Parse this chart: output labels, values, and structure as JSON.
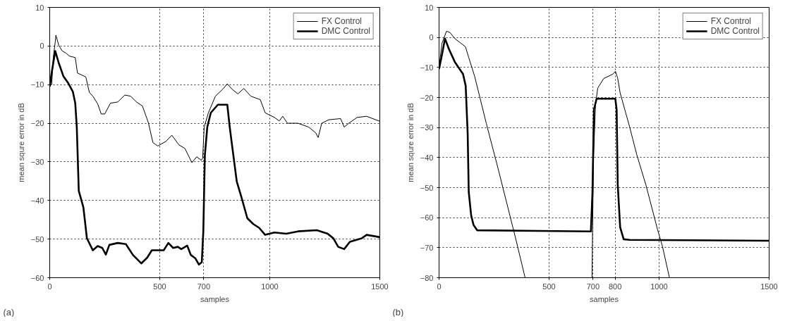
{
  "chart_data": [
    {
      "type": "line",
      "xlabel": "samples",
      "ylabel": "mean squre error in dB",
      "annotations": [
        "(a)"
      ],
      "legend": "top right",
      "grid": true,
      "xlim": [
        0,
        1500
      ],
      "ylim": [
        -60,
        10
      ],
      "xticks": [
        0,
        500,
        700,
        1000,
        1500
      ],
      "yticks": [
        -60,
        -50,
        -40,
        -30,
        -20,
        -10,
        0,
        10
      ],
      "series": [
        {
          "name": "FX Control",
          "color": "#000000",
          "x": [
            0,
            9,
            16,
            25,
            28,
            41,
            57,
            73,
            89,
            116,
            126,
            164,
            180,
            196,
            218,
            234,
            250,
            276,
            309,
            341,
            368,
            394,
            421,
            448,
            469,
            491,
            528,
            555,
            587,
            614,
            646,
            668,
            689,
            695,
            702,
            721,
            753,
            786,
            807,
            829,
            855,
            882,
            914,
            957,
            979,
            1021,
            1043,
            1059,
            1080,
            1128,
            1177,
            1209,
            1220,
            1236,
            1268,
            1322,
            1338,
            1359,
            1397,
            1440,
            1500
          ],
          "values": [
            -10.2,
            -10,
            -3,
            1,
            2.8,
            0.2,
            -1.3,
            -1.8,
            -2.6,
            -3,
            -7,
            -8,
            -12,
            -13,
            -15,
            -17.6,
            -17.6,
            -14.8,
            -14.5,
            -12.7,
            -13,
            -14.5,
            -15.5,
            -19.8,
            -25,
            -25.9,
            -24.7,
            -23.1,
            -25.6,
            -26.5,
            -30.2,
            -28.7,
            -29.6,
            -29,
            -21,
            -17.3,
            -13,
            -11.2,
            -9.8,
            -11.2,
            -12.4,
            -11,
            -13,
            -13.9,
            -17.3,
            -18.5,
            -19.4,
            -18.2,
            -20,
            -20,
            -21,
            -22.5,
            -23.7,
            -20,
            -19.1,
            -18.8,
            -21,
            -20,
            -18.5,
            -18.2,
            -19.5
          ]
        },
        {
          "name": "DMC Control",
          "color": "#000000",
          "x": [
            0,
            9,
            25,
            41,
            62,
            84,
            105,
            116,
            123,
            132,
            153,
            169,
            196,
            218,
            239,
            255,
            271,
            309,
            346,
            378,
            416,
            443,
            464,
            518,
            539,
            561,
            582,
            598,
            625,
            641,
            662,
            678,
            691,
            698,
            705,
            716,
            732,
            764,
            807,
            818,
            829,
            850,
            871,
            898,
            925,
            952,
            979,
            1021,
            1075,
            1128,
            1214,
            1263,
            1289,
            1311,
            1338,
            1364,
            1418,
            1440,
            1500
          ],
          "values": [
            -10.5,
            -6.9,
            -1.3,
            -4.4,
            -7.8,
            -9.6,
            -11.8,
            -14.8,
            -21,
            -37.5,
            -41.8,
            -49.8,
            -52.9,
            -51.8,
            -52.3,
            -54,
            -51.5,
            -51,
            -51.3,
            -54.1,
            -56.3,
            -54.8,
            -52.9,
            -52.9,
            -51,
            -52.3,
            -52,
            -52.6,
            -51.7,
            -54.1,
            -55,
            -56.6,
            -56,
            -48,
            -28.3,
            -21,
            -17.3,
            -15.2,
            -15.2,
            -21,
            -25.9,
            -35.1,
            -39.1,
            -44.6,
            -46.1,
            -47.1,
            -48.9,
            -48.3,
            -48.6,
            -48,
            -47.7,
            -48.6,
            -49.8,
            -52,
            -52.6,
            -50.7,
            -49.8,
            -48.9,
            -49.5
          ]
        }
      ]
    },
    {
      "type": "line",
      "xlabel": "samples",
      "ylabel": "mean squre error in dB",
      "annotations": [
        "(b)"
      ],
      "legend": "top right",
      "grid": true,
      "xlim": [
        0,
        1500
      ],
      "ylim": [
        -80,
        10
      ],
      "xticks": [
        0,
        500,
        700,
        800,
        1000,
        1500
      ],
      "yticks": [
        -80,
        -70,
        -60,
        -50,
        -40,
        -30,
        -20,
        -10,
        0,
        10
      ],
      "series": [
        {
          "name": "FX Control",
          "color": "#000000",
          "x": [
            0,
            13,
            34,
            50,
            72,
            120,
            135,
            162,
            215,
            268,
            322,
            349,
            391,
            695,
            702,
            711,
            721,
            748,
            790,
            802,
            812,
            823,
            865,
            898,
            940,
            993,
            1015,
            1047,
            1500
          ],
          "values": [
            -10,
            -2,
            2.1,
            1.6,
            -0.4,
            -3.1,
            -6.7,
            -13,
            -28.7,
            -43.6,
            -59.3,
            -67.2,
            -80,
            -80,
            -39.7,
            -22.4,
            -16.9,
            -13.7,
            -12.2,
            -11.3,
            -13.7,
            -18.5,
            -29.5,
            -38.9,
            -49.1,
            -64,
            -69.5,
            -80,
            -80
          ]
        },
        {
          "name": "DMC Control",
          "color": "#000000",
          "x": [
            0,
            13,
            27,
            45,
            72,
            109,
            121,
            130,
            135,
            146,
            157,
            173,
            690,
            697,
            704,
            716,
            801,
            807,
            812,
            823,
            839,
            866,
            1500
          ],
          "values": [
            -10.5,
            -5.9,
            -0.4,
            -3.9,
            -8.2,
            -12.2,
            -16.1,
            -31.8,
            -51.5,
            -59.3,
            -62.5,
            -64.2,
            -64.6,
            -52,
            -24,
            -20.4,
            -20.4,
            -24,
            -49,
            -63.2,
            -67.2,
            -67.4,
            -67.7
          ]
        }
      ]
    }
  ]
}
